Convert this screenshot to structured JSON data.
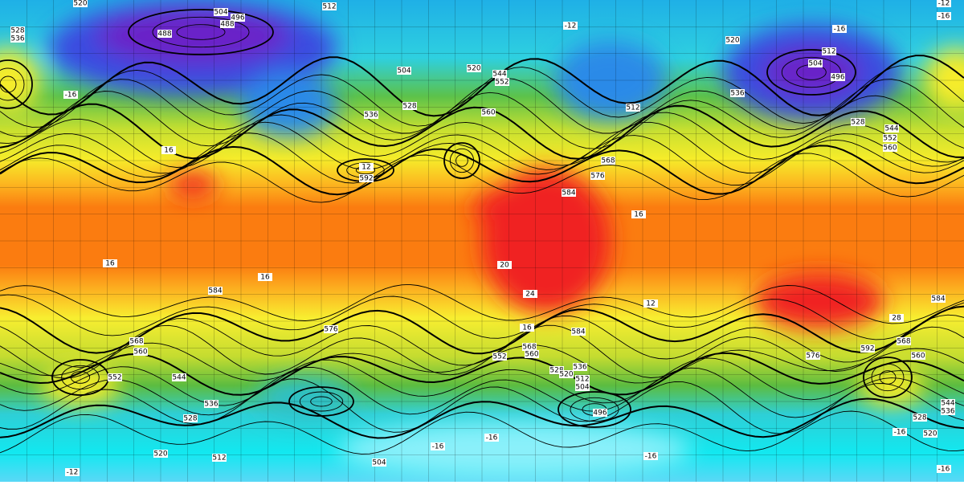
{
  "map": {
    "labels": [
      "520",
      "504",
      "496",
      "512",
      "528",
      "536",
      "488",
      "488",
      "504",
      "528",
      "536",
      "520",
      "544",
      "552",
      "560",
      "520",
      "512",
      "504",
      "496",
      "512",
      "536",
      "528",
      "544",
      "552",
      "560",
      "592",
      "584",
      "576",
      "568",
      "584",
      "576",
      "584",
      "584",
      "568",
      "560",
      "552",
      "544",
      "536",
      "528",
      "520",
      "512",
      "504",
      "552",
      "568",
      "560",
      "536",
      "528",
      "520",
      "512",
      "504",
      "496",
      "576",
      "592",
      "568",
      "560",
      "544",
      "536",
      "528",
      "520",
      "-16",
      "16",
      "12",
      "16",
      "16",
      "16",
      "20",
      "24",
      "16",
      "28",
      "-16",
      "-12",
      "-16",
      "-12",
      "-16",
      "-16",
      "-12",
      "-16",
      "-16",
      "-16",
      "12"
    ]
  }
}
